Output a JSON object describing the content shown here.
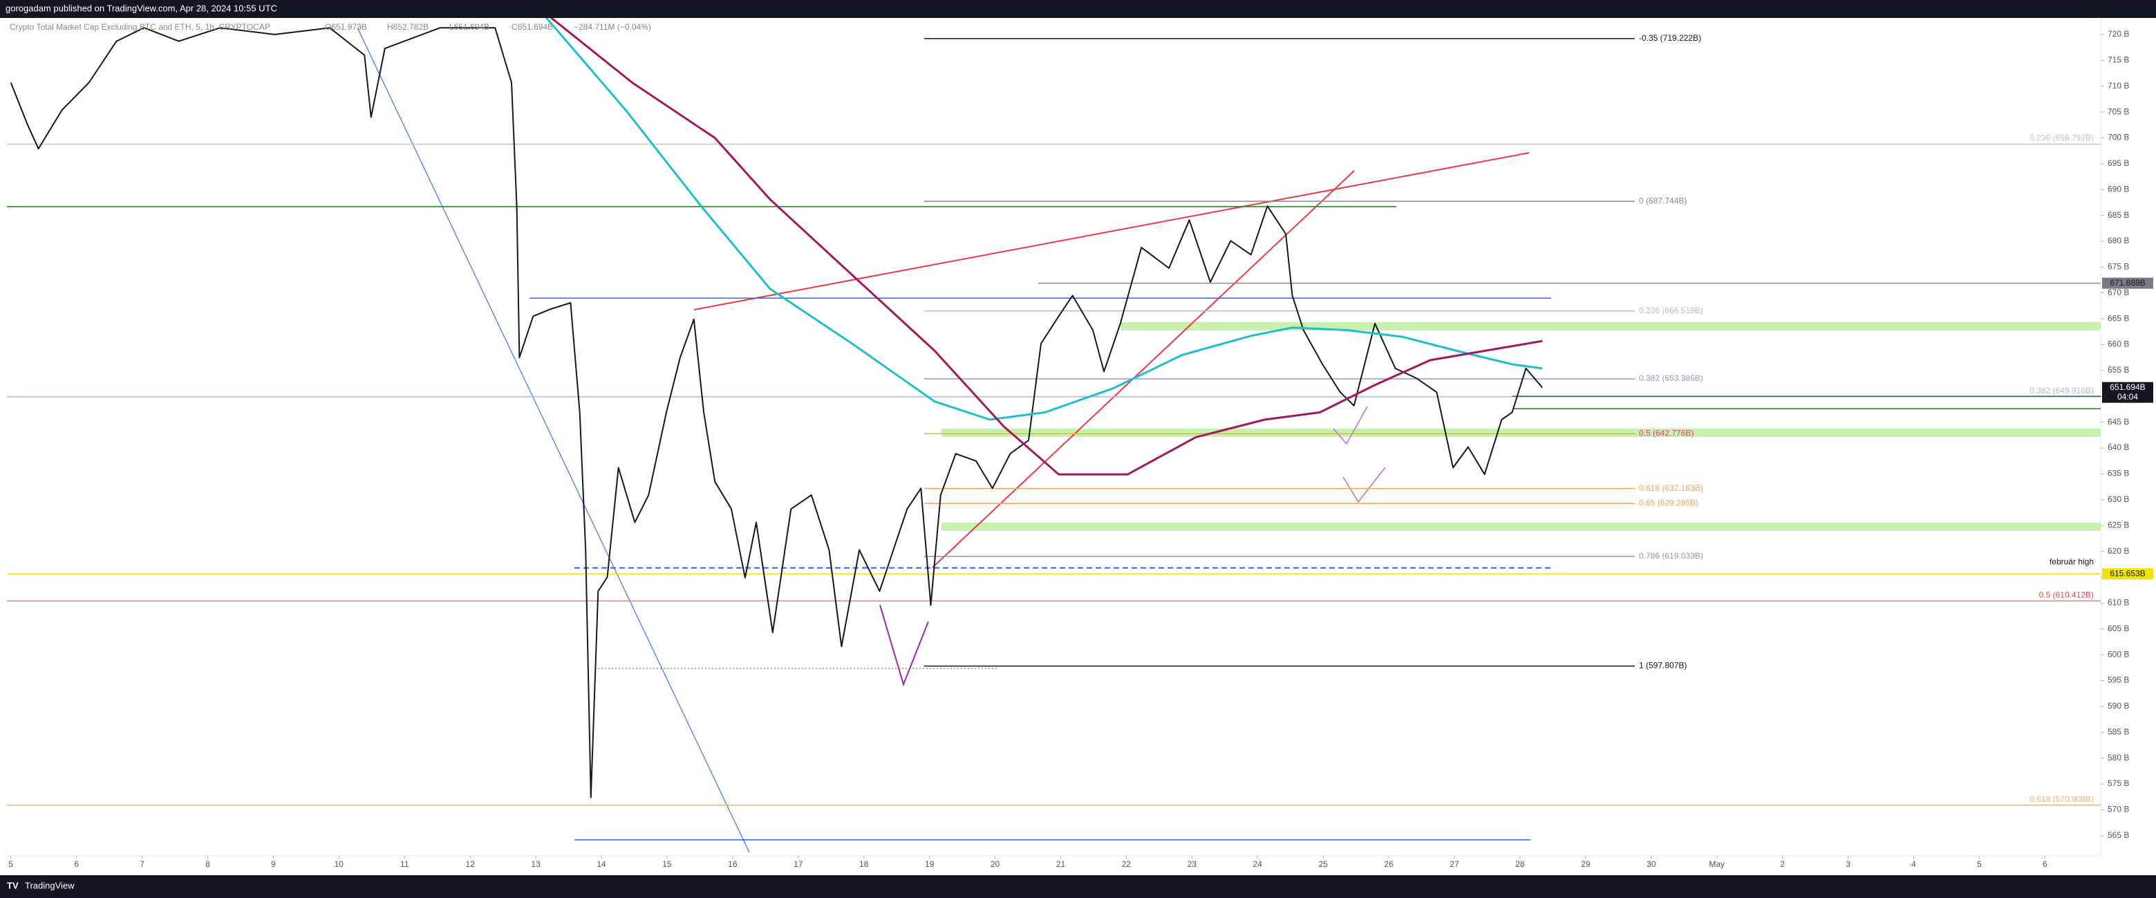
{
  "header": {
    "title": "gorogadam published on TradingView.com, Apr 28, 2024 10:55 UTC"
  },
  "footer": {
    "brand": "TradingView"
  },
  "chart_data": {
    "type": "line",
    "symbol": "Crypto Total Market Cap Excluding BTC and ETH, 5, 1h, CRYPTOCAP",
    "legend_values": [
      "O651.973B",
      "H652.782B",
      "L651.694B",
      "C651.694B",
      "−284.711M (−0.04%)"
    ],
    "xlim": [
      4.94,
      36.85
    ],
    "ylim": [
      561.1,
      723.2
    ],
    "xticks": [
      5,
      6,
      7,
      8,
      9,
      10,
      11,
      12,
      13,
      14,
      15,
      16,
      17,
      18,
      19,
      20,
      21,
      22,
      23,
      24,
      25,
      26,
      27,
      28,
      29,
      30,
      {
        "value": 31,
        "label": "May"
      },
      {
        "value": 32,
        "label": "2"
      },
      {
        "value": 33,
        "label": "3"
      },
      {
        "value": 34,
        "label": "4"
      },
      {
        "value": 35,
        "label": "5"
      },
      {
        "value": 36,
        "label": "6"
      }
    ],
    "yticks": [
      {
        "value": 565,
        "label": "565 B"
      },
      {
        "value": 570,
        "label": "570 B"
      },
      {
        "value": 575,
        "label": "575 B"
      },
      {
        "value": 580,
        "label": "580 B"
      },
      {
        "value": 585,
        "label": "585 B"
      },
      {
        "value": 590,
        "label": "590 B"
      },
      {
        "value": 595,
        "label": "595 B"
      },
      {
        "value": 600,
        "label": "600 B"
      },
      {
        "value": 605,
        "label": "605 B"
      },
      {
        "value": 610,
        "label": "610 B"
      },
      {
        "value": 615,
        "label": "615 B"
      },
      {
        "value": 620,
        "label": "620 B"
      },
      {
        "value": 625,
        "label": "625 B"
      },
      {
        "value": 630,
        "label": "630 B"
      },
      {
        "value": 635,
        "label": "635 B"
      },
      {
        "value": 640,
        "label": "640 B"
      },
      {
        "value": 645,
        "label": "645 B"
      },
      {
        "value": 650,
        "label": "650 B"
      },
      {
        "value": 655,
        "label": "655 B"
      },
      {
        "value": 660,
        "label": "660 B"
      },
      {
        "value": 665,
        "label": "665 B"
      },
      {
        "value": 670,
        "label": "670 B"
      },
      {
        "value": 675,
        "label": "675 B"
      },
      {
        "value": 680,
        "label": "680 B"
      },
      {
        "value": 685,
        "label": "685 B"
      },
      {
        "value": 690,
        "label": "690 B"
      },
      {
        "value": 695,
        "label": "695 B"
      },
      {
        "value": 700,
        "label": "700 B"
      },
      {
        "value": 705,
        "label": "705 B"
      },
      {
        "value": 710,
        "label": "710 B"
      },
      {
        "value": 715,
        "label": "715 B"
      },
      {
        "value": 720,
        "label": "720 B"
      }
    ],
    "series": [
      {
        "color": "#131722",
        "x": [
          5.0,
          5.25,
          5.42,
          5.78,
          6.19,
          6.61,
          7.03,
          7.56,
          8.19,
          9.02,
          9.86,
          10.39,
          10.49,
          10.7,
          11.54,
          12.38,
          12.63,
          12.71,
          12.75,
          12.96,
          13.21,
          13.53,
          13.67,
          13.76,
          13.84,
          13.95,
          14.09,
          14.26,
          14.51,
          14.72,
          14.99,
          15.2,
          15.41,
          15.56,
          15.73,
          15.98,
          16.19,
          16.36,
          16.61,
          16.89,
          17.2,
          17.47,
          17.66,
          17.93,
          18.24,
          18.45,
          18.66,
          18.87,
          19.02,
          19.17,
          19.4,
          19.71,
          19.96,
          20.23,
          20.51,
          20.7,
          20.97,
          21.18,
          21.49,
          21.66,
          21.91,
          22.23,
          22.65,
          22.96,
          23.28,
          23.59,
          23.9,
          24.15,
          24.43,
          24.53,
          24.7,
          24.99,
          25.26,
          25.47,
          25.79,
          26.1,
          26.42,
          26.73,
          26.98,
          27.21,
          27.46,
          27.72,
          27.88,
          28.09,
          28.34
        ],
        "values": [
          710.7,
          702.7,
          697.9,
          705.4,
          710.7,
          718.7,
          721.3,
          718.7,
          721.3,
          720,
          721.3,
          716,
          704,
          717.3,
          721.3,
          721.3,
          710.7,
          686.7,
          657.5,
          665.5,
          666.8,
          668.1,
          646.9,
          620.3,
          572.4,
          612.3,
          615,
          636.2,
          625.6,
          630.9,
          646.9,
          657.5,
          664.9,
          646.9,
          633.5,
          628.2,
          614.9,
          625.6,
          604.3,
          628.2,
          630.9,
          620.3,
          601.6,
          620.3,
          612.3,
          620.3,
          628.2,
          632.2,
          609.6,
          630.9,
          638.9,
          637.5,
          632.2,
          638.9,
          641.5,
          660.2,
          665.5,
          669.5,
          662.8,
          654.8,
          664.1,
          678.8,
          674.8,
          684.1,
          672.1,
          680.1,
          677.4,
          686.8,
          681.4,
          669.5,
          662.8,
          656.2,
          650.8,
          648.2,
          664.1,
          655.4,
          653.5,
          650.8,
          636.2,
          640.2,
          634.9,
          645.5,
          646.9,
          655.4,
          651.694
        ]
      },
      {
        "color": "#1fbfc9",
        "x": [
          13.11,
          14.37,
          15.52,
          16.57,
          17.82,
          19.08,
          19.92,
          20.76,
          21.81,
          22.85,
          23.9,
          24.53,
          25.37,
          26.21,
          27.04,
          27.88,
          28.34
        ],
        "values": [
          724,
          705.4,
          686.8,
          670.8,
          660.2,
          649,
          645.5,
          646.9,
          651.6,
          658,
          661.7,
          663.3,
          662.8,
          661.5,
          658.8,
          656.2,
          655.4
        ]
      },
      {
        "color": "#a3185a",
        "x": [
          13.21,
          14.47,
          15.73,
          16.57,
          17.82,
          19.08,
          20.13,
          20.97,
          22.02,
          23.06,
          24.11,
          24.95,
          25.79,
          26.63,
          27.46,
          28.34
        ],
        "values": [
          723.5,
          710.7,
          700,
          688.1,
          673.5,
          658.8,
          644.2,
          634.9,
          634.9,
          642.1,
          645.5,
          646.9,
          652.2,
          657,
          658.8,
          660.7
        ]
      }
    ],
    "levels": [
      {
        "value": 719.222,
        "color": "#131722",
        "label": "-0.35 (719.222B)",
        "side": "left"
      },
      {
        "value": 698.792,
        "color": "#c4c4c4",
        "label": "0.236 (698.792B)",
        "side": "right"
      },
      {
        "value": 687.744,
        "color": "#8a8a8a",
        "label": "0 (687.744B)",
        "side": "left"
      },
      {
        "value": 686.7,
        "color": "#1e7b1e"
      },
      {
        "value": 671.889,
        "color": "#8a8a8a"
      },
      {
        "value": 669,
        "color": "#2962ff"
      },
      {
        "value": 666.519,
        "color": "#bdbdbd",
        "label": "0.236 (666.519B)",
        "side": "left"
      },
      {
        "value": 653.386,
        "color": "#9598c8",
        "label": "0.382 (653.386B)",
        "side": "left"
      },
      {
        "value": 649.916,
        "color": "#b3b8e0",
        "label": "0.382 (649.916B)",
        "side": "right"
      },
      {
        "value": 642.776,
        "color": "#e6c000",
        "label": "0.5 (642.776B)",
        "side": "left",
        "text_color": "#e0457b"
      },
      {
        "value": 632.163,
        "color": "#f5a55a",
        "label": "0.618 (632.163B)",
        "side": "left"
      },
      {
        "value": 629.285,
        "color": "#f5a55a",
        "label": "0.65 (629.285B)",
        "side": "left"
      },
      {
        "value": 619.033,
        "color": "#999999",
        "label": "0.786 (619.033B)",
        "side": "left"
      },
      {
        "value": 616.8,
        "color": "#2962ff",
        "label": "február high",
        "side": "right",
        "dashed": true,
        "text_color": "#131722"
      },
      {
        "value": 615.653,
        "color": "#f2e400"
      },
      {
        "value": 610.412,
        "color": "#f08080",
        "label": "0.5 (610.412B)",
        "side": "right",
        "text_color": "#e04848"
      },
      {
        "value": 597.807,
        "color": "#131722",
        "label": "1 (597.807B)",
        "side": "left"
      },
      {
        "value": 570.908,
        "color": "#f5b07a",
        "label": "0.618 (570.908B)",
        "side": "right"
      },
      {
        "value": 564.2,
        "color": "#2962ff"
      },
      {
        "value": 650.0,
        "color": "#1e7b1e"
      },
      {
        "value": 647.6,
        "color": "#1e7b1e"
      }
    ],
    "price_tags": [
      {
        "value": 671.889,
        "label": "671.889B",
        "color": "#787b86",
        "text_color": "#131722"
      },
      {
        "value": 651.694,
        "label": "651.694B",
        "note": "04:04",
        "color": "#131722",
        "text_color": "#ffffff"
      },
      {
        "value": 615.653,
        "label": "615.653B",
        "color": "#f2e400",
        "text_color": "#131722"
      }
    ]
  }
}
